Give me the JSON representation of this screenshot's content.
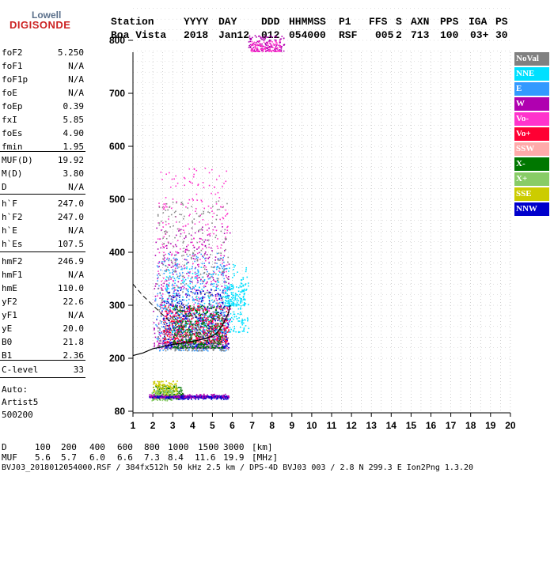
{
  "logo": {
    "line1": "Lowell",
    "line2": "DIGISONDE"
  },
  "header": {
    "labels": [
      "Station",
      "YYYY",
      "DAY",
      "DDD",
      "HHMMSS",
      "P1",
      "FFS",
      "S",
      "AXN",
      "PPS",
      "IGA",
      "PS"
    ],
    "values": [
      "Boa Vista",
      "2018",
      "Jan12",
      "012",
      "054000",
      "RSF",
      "005",
      "2",
      "713",
      "100",
      "03+",
      "30"
    ]
  },
  "params": {
    "g1": [
      {
        "label": "foF2",
        "value": "5.250"
      },
      {
        "label": "foF1",
        "value": "N/A"
      },
      {
        "label": "foF1p",
        "value": "N/A"
      },
      {
        "label": "foE",
        "value": "N/A"
      },
      {
        "label": "foEp",
        "value": "0.39"
      },
      {
        "label": "fxI",
        "value": "5.85"
      },
      {
        "label": "foEs",
        "value": "4.90"
      },
      {
        "label": "fmin",
        "value": "1.95"
      }
    ],
    "g2": [
      {
        "label": "MUF(D)",
        "value": "19.92"
      },
      {
        "label": "M(D)",
        "value": "3.80"
      },
      {
        "label": "D",
        "value": "N/A"
      }
    ],
    "g3": [
      {
        "label": "h`F",
        "value": "247.0"
      },
      {
        "label": "h`F2",
        "value": "247.0"
      },
      {
        "label": "h`E",
        "value": "N/A"
      },
      {
        "label": "h`Es",
        "value": "107.5"
      }
    ],
    "g4": [
      {
        "label": "hmF2",
        "value": "246.9"
      },
      {
        "label": "hmF1",
        "value": "N/A"
      },
      {
        "label": "hmE",
        "value": "110.0"
      },
      {
        "label": "yF2",
        "value": "22.6"
      },
      {
        "label": "yF1",
        "value": "N/A"
      },
      {
        "label": "yE",
        "value": "20.0"
      },
      {
        "label": "B0",
        "value": "21.8"
      },
      {
        "label": "B1",
        "value": "2.36"
      }
    ],
    "g5": [
      {
        "label": "C-level",
        "value": "33"
      }
    ]
  },
  "auto": {
    "line1": "Auto:",
    "line2": "Artist5",
    "line3": "500200"
  },
  "legend": [
    {
      "label": "NoVal",
      "color": "#808080"
    },
    {
      "label": "NNE",
      "color": "#00e0ff"
    },
    {
      "label": "E",
      "color": "#3399ff"
    },
    {
      "label": "W",
      "color": "#b000b0"
    },
    {
      "label": "Vo-",
      "color": "#ff33cc"
    },
    {
      "label": "Vo+",
      "color": "#ff0033"
    },
    {
      "label": "SSW",
      "color": "#ffaaaa"
    },
    {
      "label": "X-",
      "color": "#007700"
    },
    {
      "label": "X+",
      "color": "#88cc66"
    },
    {
      "label": "SSE",
      "color": "#cccc00"
    },
    {
      "label": "NNW",
      "color": "#0000cc"
    }
  ],
  "footer": {
    "d_row_label": "D",
    "d_values": [
      "100",
      "200",
      "400",
      "600",
      "800",
      "1000",
      "1500",
      "3000"
    ],
    "d_unit": "[km]",
    "muf_row_label": "MUF",
    "muf_values": [
      "5.6",
      "5.7",
      "6.0",
      "6.6",
      "7.3",
      "8.4",
      "11.6",
      "19.9"
    ],
    "muf_unit": "[MHz]",
    "file_line": "BVJ03_2018012054000.RSF / 384fx512h 50 kHz 2.5 km / DPS-4D BVJ03 003 / 2.8 N 299.3 E Ion2Png 1.3.20"
  },
  "chart_data": {
    "type": "scatter",
    "xlim": [
      1,
      20
    ],
    "ylim": [
      80,
      900
    ],
    "x_ticks": [
      "1",
      "2",
      "3",
      "4",
      "5",
      "6",
      "7",
      "8",
      "9",
      "10",
      "11",
      "12",
      "13",
      "14",
      "15",
      "16",
      "17",
      "18",
      "19",
      "20"
    ],
    "y_ticks": [
      "80",
      "200",
      "300",
      "400",
      "500",
      "600",
      "700",
      "800",
      "900"
    ],
    "grid": true,
    "clusters": [
      {
        "color": "#b000b0",
        "x": [
          2.0,
          5.9
        ],
        "y": [
          220,
          450
        ]
      },
      {
        "color": "#00e0ff",
        "x": [
          2.5,
          6.8
        ],
        "y": [
          250,
          380
        ]
      },
      {
        "color": "#ff33cc",
        "x": [
          2.2,
          5.8
        ],
        "y": [
          220,
          560
        ]
      },
      {
        "color": "#3399ff",
        "x": [
          2.1,
          5.7
        ],
        "y": [
          215,
          400
        ]
      },
      {
        "color": "#0000cc",
        "x": [
          2.5,
          5.8
        ],
        "y": [
          220,
          330
        ]
      },
      {
        "color": "#ff0033",
        "x": [
          2.5,
          5.8
        ],
        "y": [
          230,
          300
        ]
      },
      {
        "color": "#007700",
        "x": [
          3.0,
          5.5
        ],
        "y": [
          220,
          300
        ]
      },
      {
        "color": "#888888",
        "x": [
          2.2,
          5.8
        ],
        "y": [
          215,
          500
        ]
      },
      {
        "color": "#b000b0",
        "x": [
          1.8,
          5.8
        ],
        "y": [
          112,
          120
        ]
      },
      {
        "color": "#0000cc",
        "x": [
          1.8,
          5.8
        ],
        "y": [
          108,
          116
        ]
      },
      {
        "color": "#007700",
        "x": [
          2.0,
          3.5
        ],
        "y": [
          108,
          140
        ]
      },
      {
        "color": "#cccc00",
        "x": [
          2.0,
          3.2
        ],
        "y": [
          110,
          150
        ]
      },
      {
        "color": "#88cc66",
        "x": [
          1.9,
          3.0
        ],
        "y": [
          105,
          130
        ]
      },
      {
        "color": "#b000b0",
        "x": [
          6.8,
          8.6
        ],
        "y": [
          780,
          810
        ]
      },
      {
        "color": "#ff33cc",
        "x": [
          6.9,
          8.4
        ],
        "y": [
          780,
          800
        ]
      },
      {
        "color": "#00e0ff",
        "x": [
          5.6,
          6.6
        ],
        "y": [
          300,
          340
        ]
      }
    ],
    "profile_curve": {
      "x": [
        1.0,
        1.5,
        2.0,
        2.5,
        3.0,
        3.5,
        4.0,
        4.5,
        5.0,
        5.2,
        5.5,
        5.8,
        5.9
      ],
      "y": [
        205,
        210,
        218,
        222,
        226,
        229,
        232,
        236,
        242,
        247,
        262,
        285,
        300
      ]
    },
    "dashed_line": {
      "x": [
        1.0,
        1.5,
        2.0,
        2.5,
        3.0
      ],
      "y": [
        340,
        318,
        300,
        282,
        265
      ]
    }
  }
}
